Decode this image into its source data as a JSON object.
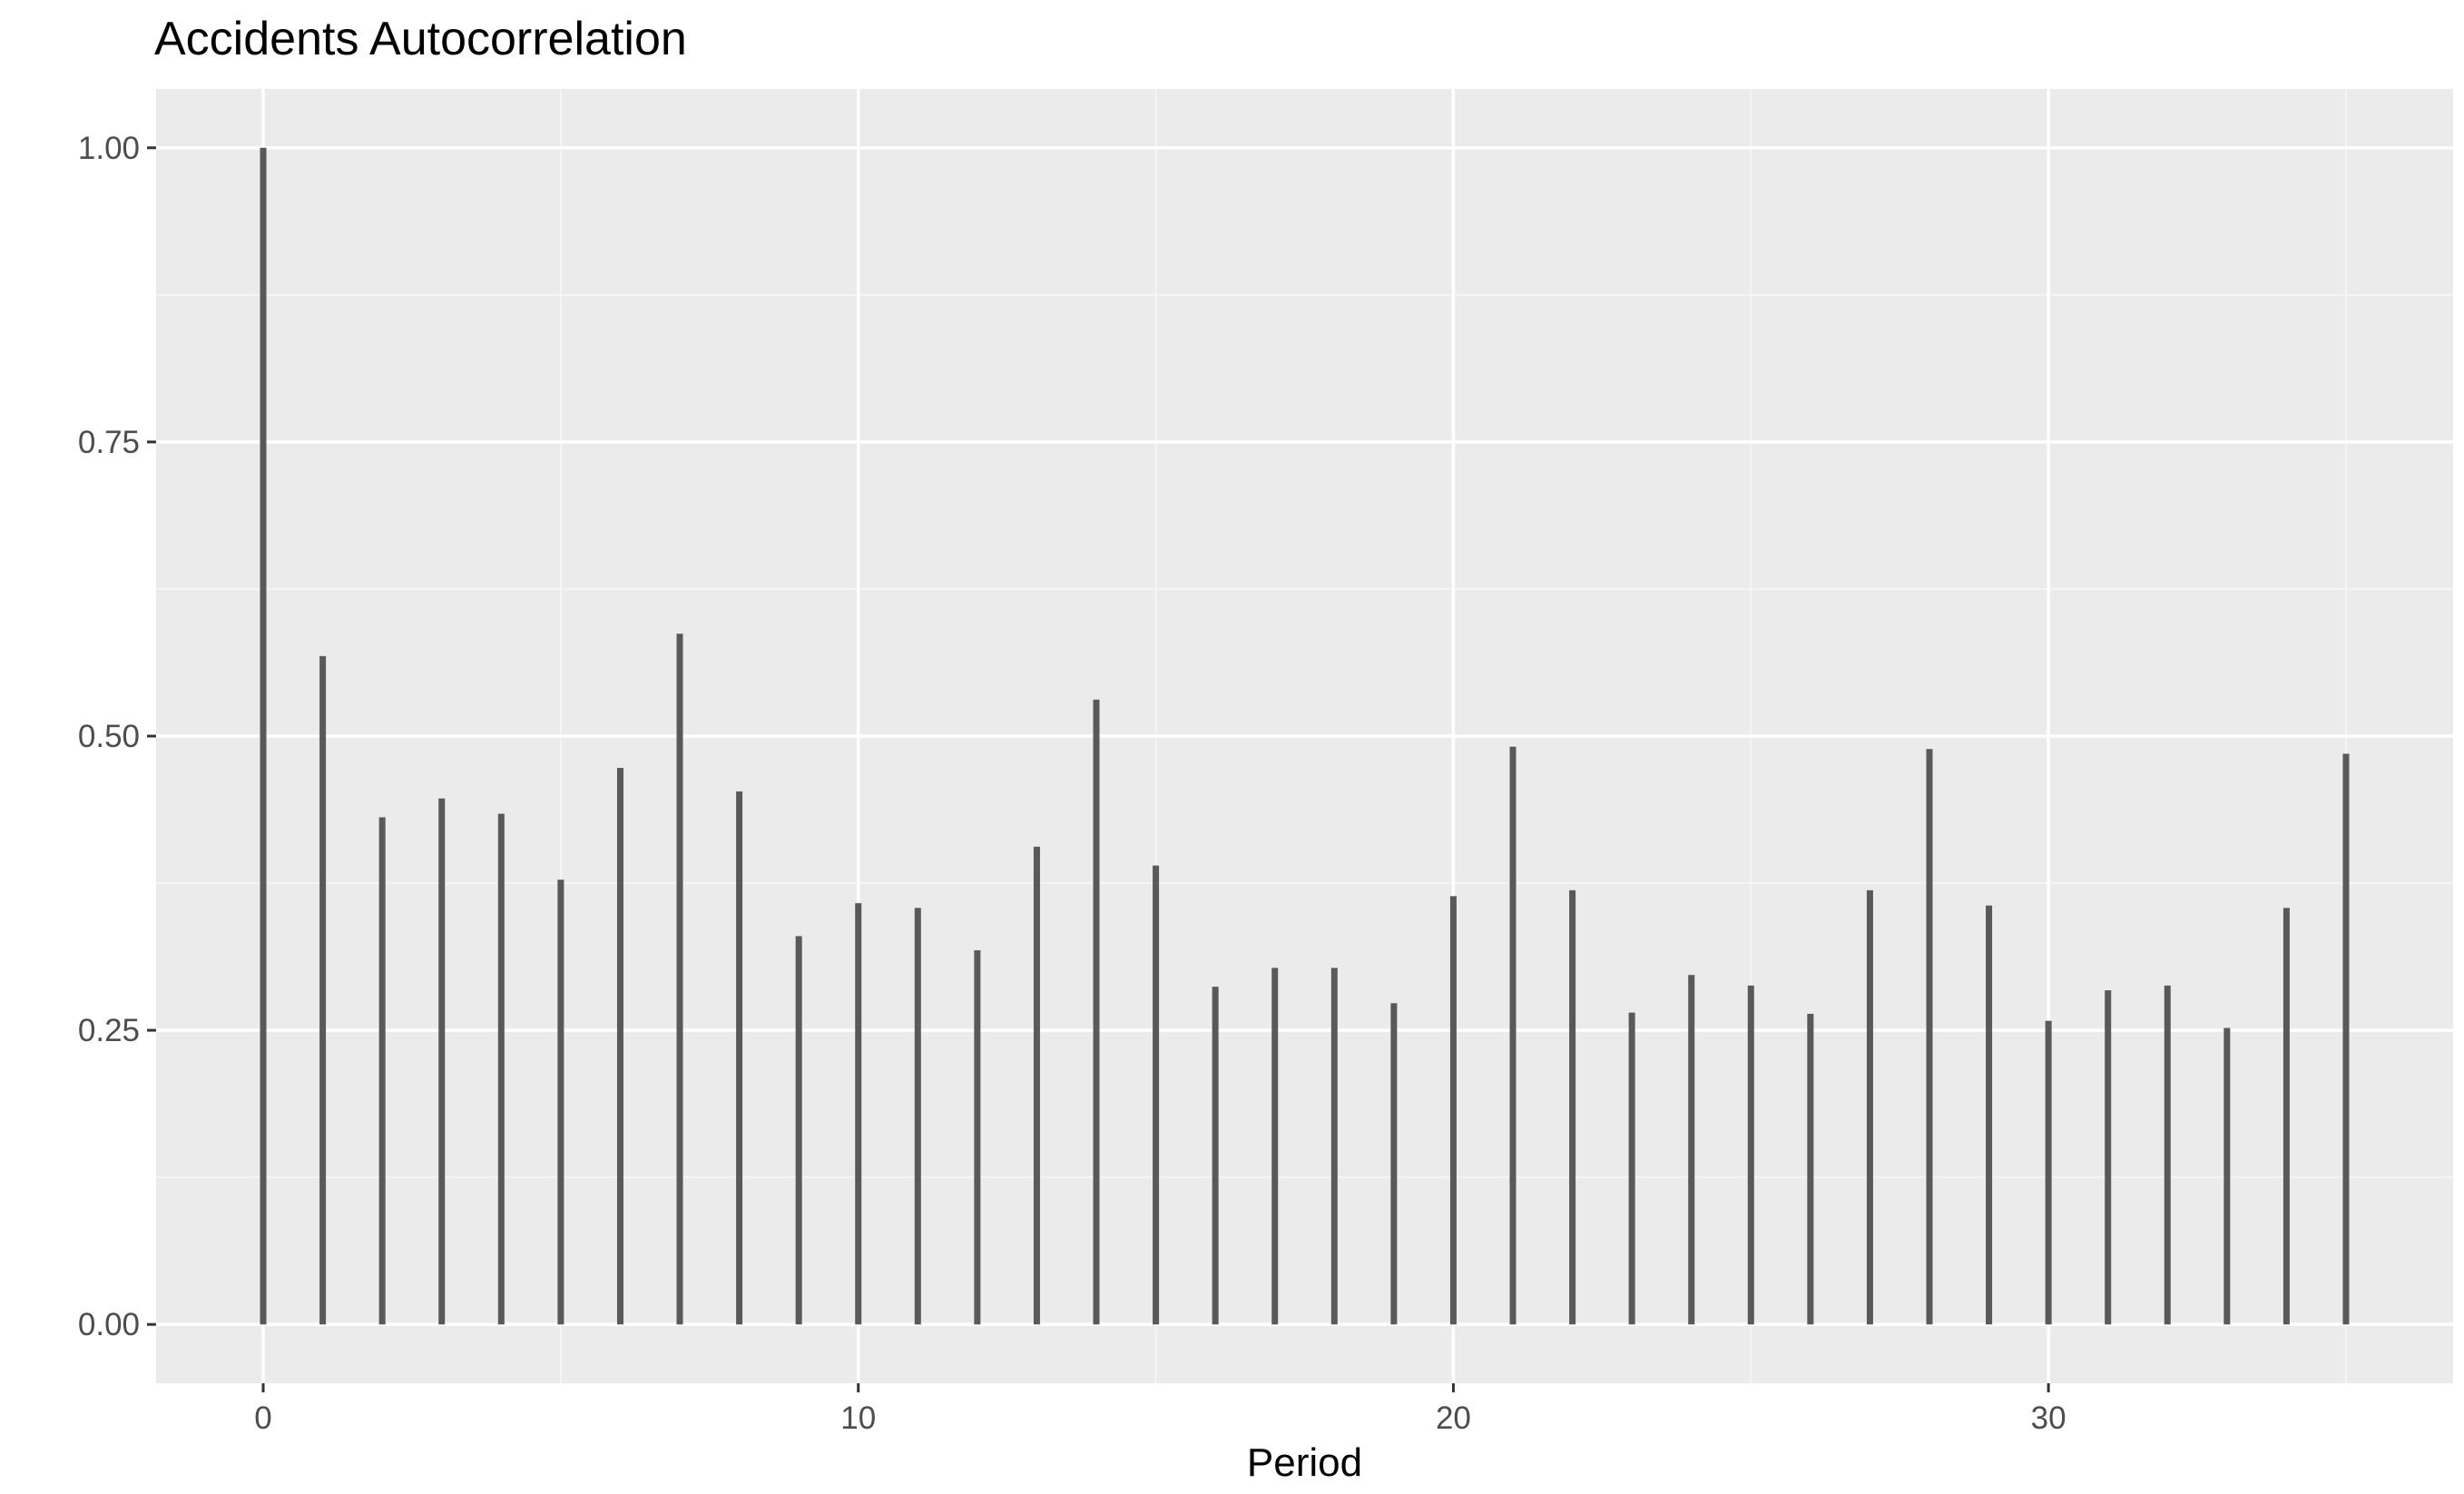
{
  "chart_data": {
    "type": "bar",
    "title": "Accidents Autocorrelation",
    "xlabel": "Period",
    "ylabel": "",
    "x": [
      0,
      1,
      2,
      3,
      4,
      5,
      6,
      7,
      8,
      9,
      10,
      11,
      12,
      13,
      14,
      15,
      16,
      17,
      18,
      19,
      20,
      21,
      22,
      23,
      24,
      25,
      26,
      27,
      28,
      29,
      30,
      31,
      32,
      33,
      34,
      35
    ],
    "values": [
      1.0,
      0.568,
      0.431,
      0.447,
      0.434,
      0.378,
      0.473,
      0.587,
      0.453,
      0.33,
      0.358,
      0.354,
      0.318,
      0.406,
      0.531,
      0.39,
      0.287,
      0.303,
      0.303,
      0.273,
      0.364,
      0.491,
      0.369,
      0.265,
      0.297,
      0.288,
      0.264,
      0.369,
      0.489,
      0.356,
      0.258,
      0.284,
      0.288,
      0.252,
      0.354,
      0.485
    ],
    "xlim": [
      -1.8,
      36.8
    ],
    "ylim": [
      -0.05,
      1.05
    ],
    "x_ticks": [
      0,
      10,
      20,
      30
    ],
    "x_tick_labels": [
      "0",
      "10",
      "20",
      "30"
    ],
    "y_ticks": [
      0,
      0.25,
      0.5,
      0.75,
      1.0
    ],
    "y_tick_labels": [
      "0.00",
      "0.25",
      "0.50",
      "0.75",
      "1.00"
    ],
    "grid": true,
    "legend": "none",
    "colors": {
      "panel_background": "#ebebeb",
      "grid_major": "#ffffff",
      "grid_minor": "#f5f5f5",
      "bar": "#595959",
      "tick": "#333333"
    }
  }
}
